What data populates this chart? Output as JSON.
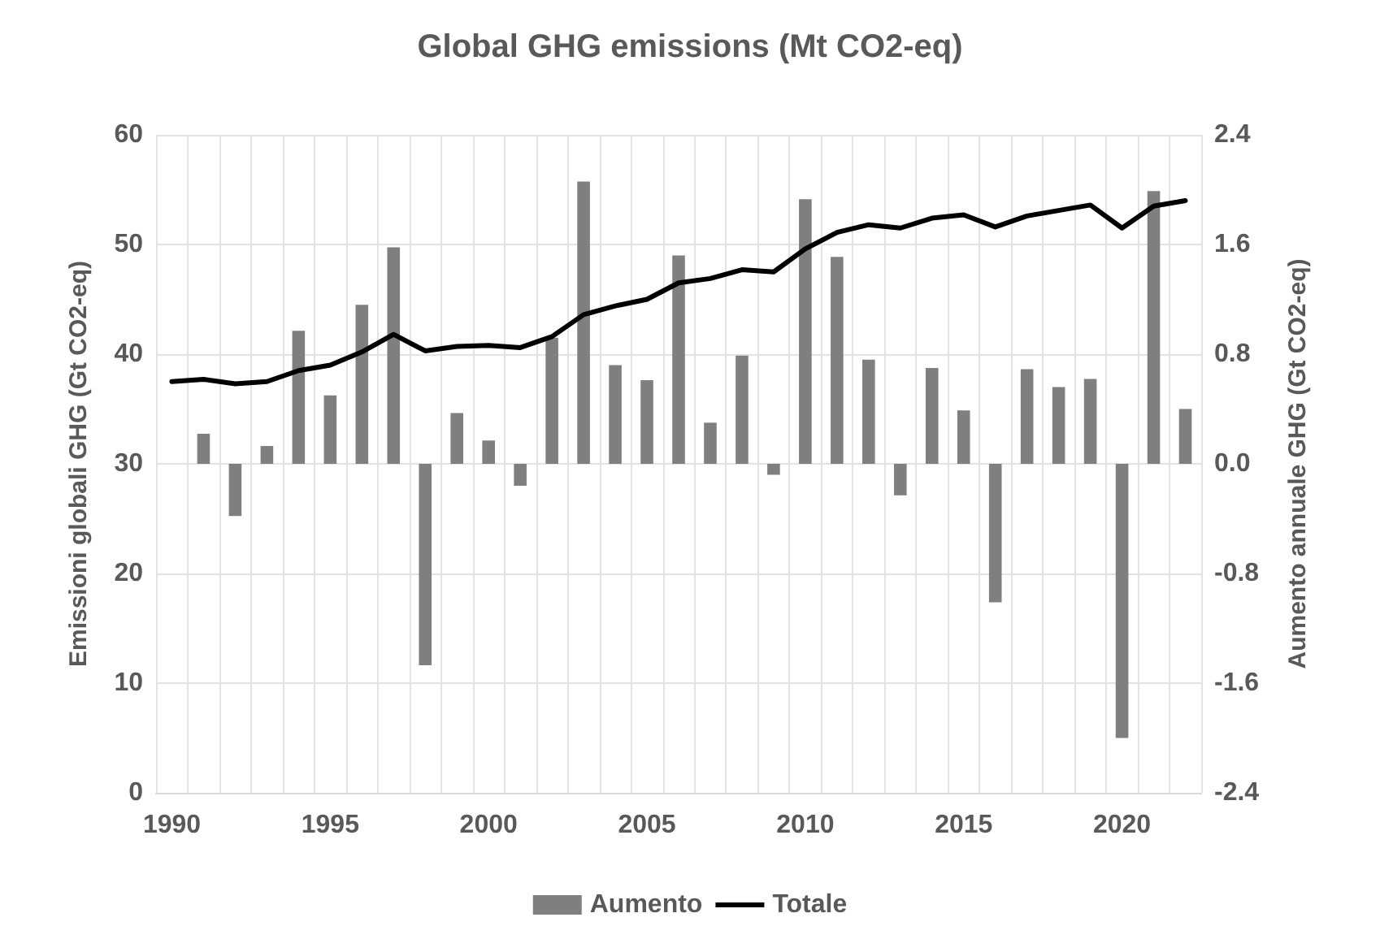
{
  "chart_data": {
    "type": "bar",
    "title": "Global GHG emissions (Mt CO2-eq)",
    "ylabel": "Emissioni globali GHG (Gt CO2-eq)",
    "y2label": "Aumento annuale GHG (Gt CO2-eq)",
    "categories": [
      "1990",
      null,
      null,
      null,
      null,
      "1995",
      null,
      null,
      null,
      null,
      "2000",
      null,
      null,
      null,
      null,
      "2005",
      null,
      null,
      null,
      null,
      "2010",
      null,
      null,
      null,
      null,
      "2015",
      null,
      null,
      null,
      null,
      "2020",
      null,
      null
    ],
    "series": [
      {
        "name": "Aumento",
        "axis": "y2",
        "color": "#7f7f7f",
        "values": [
          null,
          0.22,
          -0.38,
          0.13,
          0.97,
          0.5,
          1.16,
          1.58,
          -1.47,
          0.37,
          0.17,
          -0.16,
          0.92,
          2.06,
          0.72,
          0.61,
          1.52,
          0.3,
          0.79,
          -0.08,
          1.93,
          1.51,
          0.76,
          -0.23,
          0.7,
          0.39,
          -1.01,
          0.69,
          0.56,
          0.62,
          -2.0,
          1.99,
          0.4
        ]
      },
      {
        "name": "Totale",
        "type": "line",
        "color": "#000000",
        "values": [
          37.5,
          37.7,
          37.3,
          37.5,
          38.5,
          39.0,
          40.2,
          41.8,
          40.3,
          40.7,
          40.8,
          40.6,
          41.6,
          43.6,
          44.4,
          45.0,
          46.5,
          46.9,
          47.7,
          47.5,
          49.6,
          51.1,
          51.8,
          51.5,
          52.4,
          52.7,
          51.6,
          52.6,
          53.1,
          53.6,
          51.5,
          53.5,
          54.0
        ]
      }
    ],
    "ylim": [
      0,
      60
    ],
    "yticks": [
      0,
      10,
      20,
      30,
      40,
      50,
      60
    ],
    "y2lim": [
      -2.4,
      2.4
    ],
    "y2ticks": [
      -2.4,
      -1.6,
      -0.8,
      {
        "value": 0,
        "label": "0.0"
      },
      0.8,
      1.6,
      2.4
    ],
    "grid": true,
    "legend": "bottom",
    "marker": "none",
    "line_style": "solid"
  }
}
